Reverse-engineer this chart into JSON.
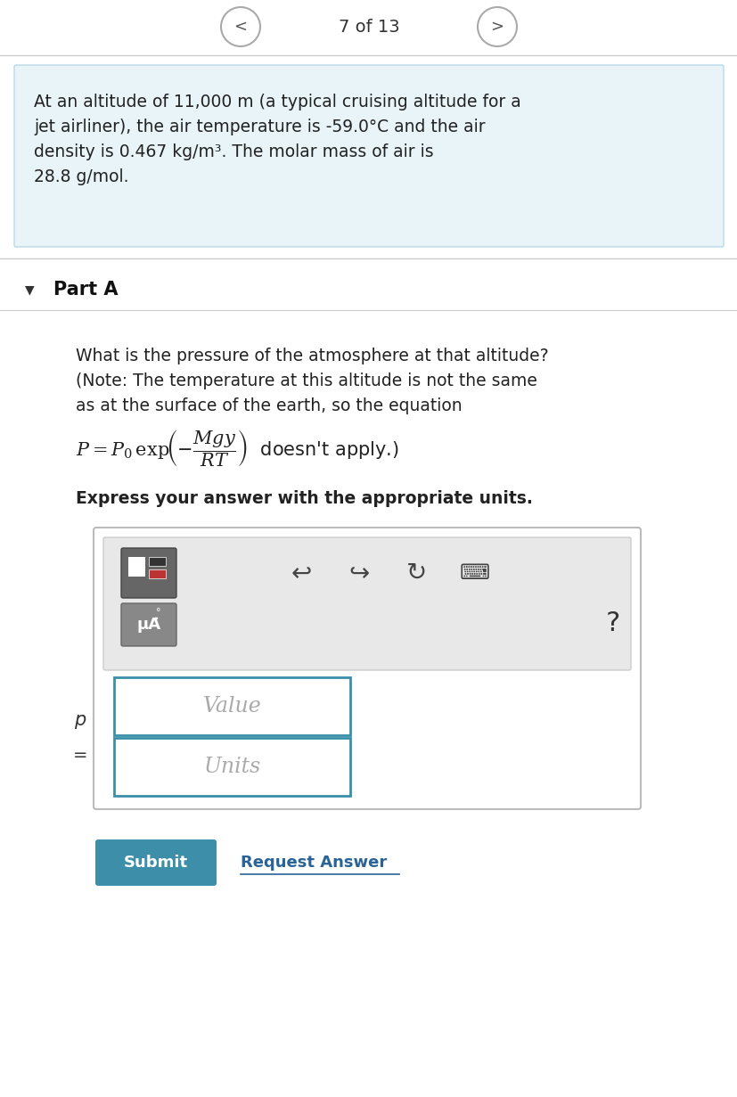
{
  "nav_text": "7 of 13",
  "bg_color": "#ffffff",
  "light_blue_bg": "#e8f4f8",
  "info_text_line1": "At an altitude of 11,000 m (a typical cruising altitude for a",
  "info_text_line2": "jet airliner), the air temperature is -59.0°C and the air",
  "info_text_line3": "density is 0.467 kg/m³. The molar mass of air is",
  "info_text_line4": "28.8 g/mol.",
  "part_label": "Part A",
  "question_line1": "What is the pressure of the atmosphere at that altitude?",
  "question_line2": "(Note: The temperature at this altitude is not the same",
  "question_line3": "as at the surface of the earth, so the equation",
  "equation_note": "doesn't apply.)",
  "bold_instruction": "Express your answer with the appropriate units.",
  "value_placeholder": "Value",
  "units_placeholder": "Units",
  "submit_btn_color": "#3d8ea8",
  "submit_text": "Submit",
  "request_answer_text": "Request Answer",
  "panel_bg": "#f0f0f0",
  "border_color": "#c0c0c0",
  "input_border": "#3a8fa8",
  "text_color": "#222222",
  "placeholder_color": "#aaaaaa"
}
